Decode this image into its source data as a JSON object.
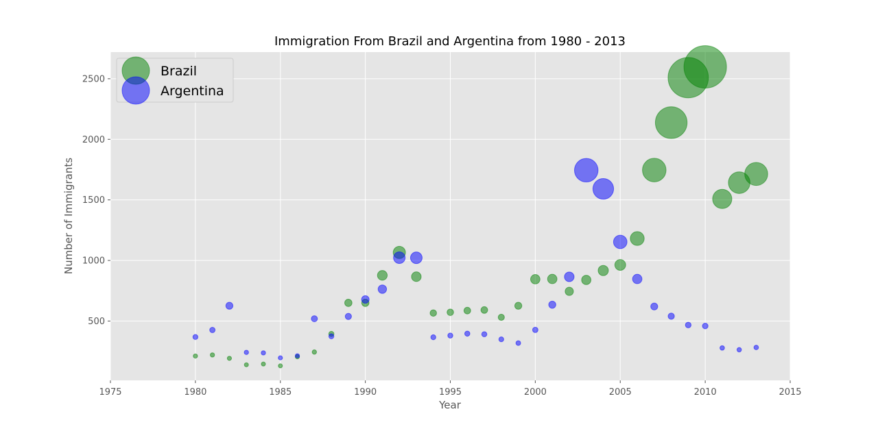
{
  "chart_data": {
    "type": "scatter",
    "title": "Immigration From Brazil and Argentina from 1980 - 2013",
    "xlabel": "Year",
    "ylabel": "Number of Immigrants",
    "xlim": [
      1975,
      2015
    ],
    "ylim": [
      10,
      2720
    ],
    "xticks": [
      1975,
      1980,
      1985,
      1990,
      1995,
      2000,
      2005,
      2010,
      2015
    ],
    "yticks": [
      500,
      1000,
      1500,
      2000,
      2500
    ],
    "grid": true,
    "legend_position": "top-left",
    "bubble_size_encoding": "value",
    "series": [
      {
        "name": "Brazil",
        "color": "#008000",
        "x": [
          1980,
          1981,
          1982,
          1983,
          1984,
          1985,
          1986,
          1987,
          1988,
          1989,
          1990,
          1991,
          1992,
          1993,
          1994,
          1995,
          1996,
          1997,
          1998,
          1999,
          2000,
          2001,
          2002,
          2003,
          2004,
          2005,
          2006,
          2007,
          2008,
          2009,
          2010,
          2011,
          2012,
          2013
        ],
        "y": [
          211,
          220,
          192,
          139,
          145,
          130,
          205,
          244,
          394,
          650,
          650,
          877,
          1066,
          866,
          566,
          572,
          586,
          591,
          531,
          626,
          845,
          847,
          745,
          839,
          917,
          963,
          1181,
          1746,
          2138,
          2509,
          2598,
          1508,
          1642,
          1714
        ]
      },
      {
        "name": "Argentina",
        "color": "#0000ff",
        "x": [
          1980,
          1981,
          1982,
          1983,
          1984,
          1985,
          1986,
          1987,
          1988,
          1989,
          1990,
          1991,
          1992,
          1993,
          1994,
          1995,
          1996,
          1997,
          1998,
          1999,
          2000,
          2001,
          2002,
          2003,
          2004,
          2005,
          2006,
          2007,
          2008,
          2009,
          2010,
          2011,
          2012,
          2013
        ],
        "y": [
          368,
          426,
          626,
          241,
          237,
          196,
          213,
          519,
          374,
          538,
          678,
          763,
          1023,
          1022,
          366,
          380,
          396,
          391,
          349,
          318,
          427,
          635,
          865,
          1745,
          1591,
          1153,
          847,
          620,
          540,
          467,
          459,
          278,
          263,
          282
        ]
      }
    ]
  }
}
